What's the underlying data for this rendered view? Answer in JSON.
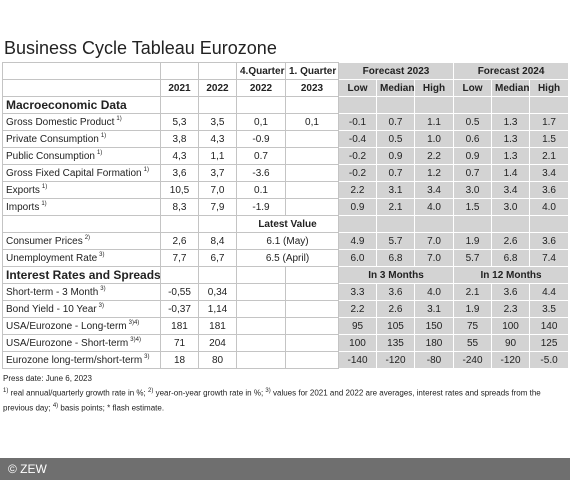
{
  "header": {
    "title": "Business Cycle Tableau Eurozone"
  },
  "table": {
    "header1": {
      "q4": "4.Quarter",
      "q1": "1. Quarter",
      "forecast": [
        "Forecast 2023",
        "Forecast 2024"
      ]
    },
    "header2": {
      "years": [
        "2021",
        "2022",
        "2022",
        "2023"
      ],
      "forecast": [
        "Low",
        "Median",
        "High",
        "Low",
        "Median",
        "High"
      ]
    },
    "rows": [
      {
        "section": "Macroeconomic Data"
      },
      {
        "label": "Gross Domestic Product",
        "note": "1)",
        "cells": [
          "5,3",
          "3,5",
          "0,1",
          "0,1"
        ],
        "forecast": [
          "-0.1",
          "0.7",
          "1.1",
          "0.5",
          "1.3",
          "1.7"
        ]
      },
      {
        "label": "Private Consumption",
        "note": "1)",
        "cells": [
          "3,8",
          "4,3",
          "-0.9"
        ],
        "forecast": [
          "-0.4",
          "0.5",
          "1.0",
          "0.6",
          "1.3",
          "1.5"
        ]
      },
      {
        "label": "Public Consumption",
        "note": "1)",
        "cells": [
          "4,3",
          "1,1",
          "0.7"
        ],
        "forecast": [
          "-0.2",
          "0.9",
          "2.2",
          "0.9",
          "1.3",
          "2.1"
        ]
      },
      {
        "label": "Gross Fixed Capital Formation",
        "note": "1)",
        "cells": [
          "3,6",
          "3,7",
          "-3.6"
        ],
        "forecast": [
          "-0.2",
          "0.7",
          "1.2",
          "0.7",
          "1.4",
          "3.4"
        ]
      },
      {
        "label": "Exports",
        "note": "1)",
        "cells": [
          "10,5",
          "7,0",
          "0.1"
        ],
        "forecast": [
          "2.2",
          "3.1",
          "3.4",
          "3.0",
          "3.4",
          "3.6"
        ]
      },
      {
        "label": "Imports",
        "note": "1)",
        "cells": [
          "8,3",
          "7,9",
          "-1.9"
        ],
        "forecast": [
          "0.9",
          "2.1",
          "4.0",
          "1.5",
          "3.0",
          "4.0"
        ]
      },
      {
        "latest_header": "Latest Value"
      },
      {
        "label": "Consumer Prices",
        "note": "2)",
        "cells": [
          "2,6",
          "8,4"
        ],
        "latest": "6.1 (May)",
        "forecast": [
          "4.9",
          "5.7",
          "7.0",
          "1.9",
          "2.6",
          "3.6"
        ]
      },
      {
        "label": "Unemployment Rate",
        "note": "3)",
        "cells": [
          "7,7",
          "6,7"
        ],
        "latest": "6.5 (April)",
        "forecast": [
          "6.0",
          "6.8",
          "7.0",
          "5.7",
          "6.8",
          "7.4"
        ]
      },
      {
        "section": "Interest Rates and Spreads",
        "horizons": [
          "In 3 Months",
          "In 12 Months"
        ]
      },
      {
        "label": "Short-term - 3 Month",
        "note": "3)",
        "cells": [
          "-0,55",
          "0,34"
        ],
        "forecast": [
          "3.3",
          "3.6",
          "4.0",
          "2.1",
          "3.6",
          "4.4"
        ]
      },
      {
        "label": "Bond Yield - 10 Year",
        "note": "3)",
        "cells": [
          "-0,37",
          "1,14"
        ],
        "forecast": [
          "2.2",
          "2.6",
          "3.1",
          "1.9",
          "2.3",
          "3.5"
        ]
      },
      {
        "label": "USA/Eurozone - Long-term",
        "note": "3)4)",
        "cells": [
          "181",
          "181"
        ],
        "forecast": [
          "95",
          "105",
          "150",
          "75",
          "100",
          "140"
        ]
      },
      {
        "label": "USA/Eurozone - Short-term",
        "note": "3)4)",
        "cells": [
          "71",
          "204"
        ],
        "forecast": [
          "100",
          "135",
          "180",
          "55",
          "90",
          "125"
        ]
      },
      {
        "label": "Eurozone long-term/short-term",
        "note": "3)",
        "cells": [
          "18",
          "80"
        ],
        "forecast": [
          "-140",
          "-120",
          "-80",
          "-240",
          "-120",
          "-5.0"
        ]
      }
    ]
  },
  "notes": {
    "press_date": "Press date: June 6, 2023",
    "footnotes": [
      {
        "mark": "1)",
        "text": "real annual/quarterly growth rate in %;"
      },
      {
        "mark": "2)",
        "text": "year-on-year growth rate in %;"
      },
      {
        "mark": "3)",
        "text": "values for 2021 and 2022 are averages, interest rates and spreads from the previous day;"
      },
      {
        "mark": "4)",
        "text": "basis points;"
      },
      {
        "mark": "*",
        "text": "flash estimate."
      }
    ]
  },
  "footer": {
    "copyright": "© ZEW"
  }
}
